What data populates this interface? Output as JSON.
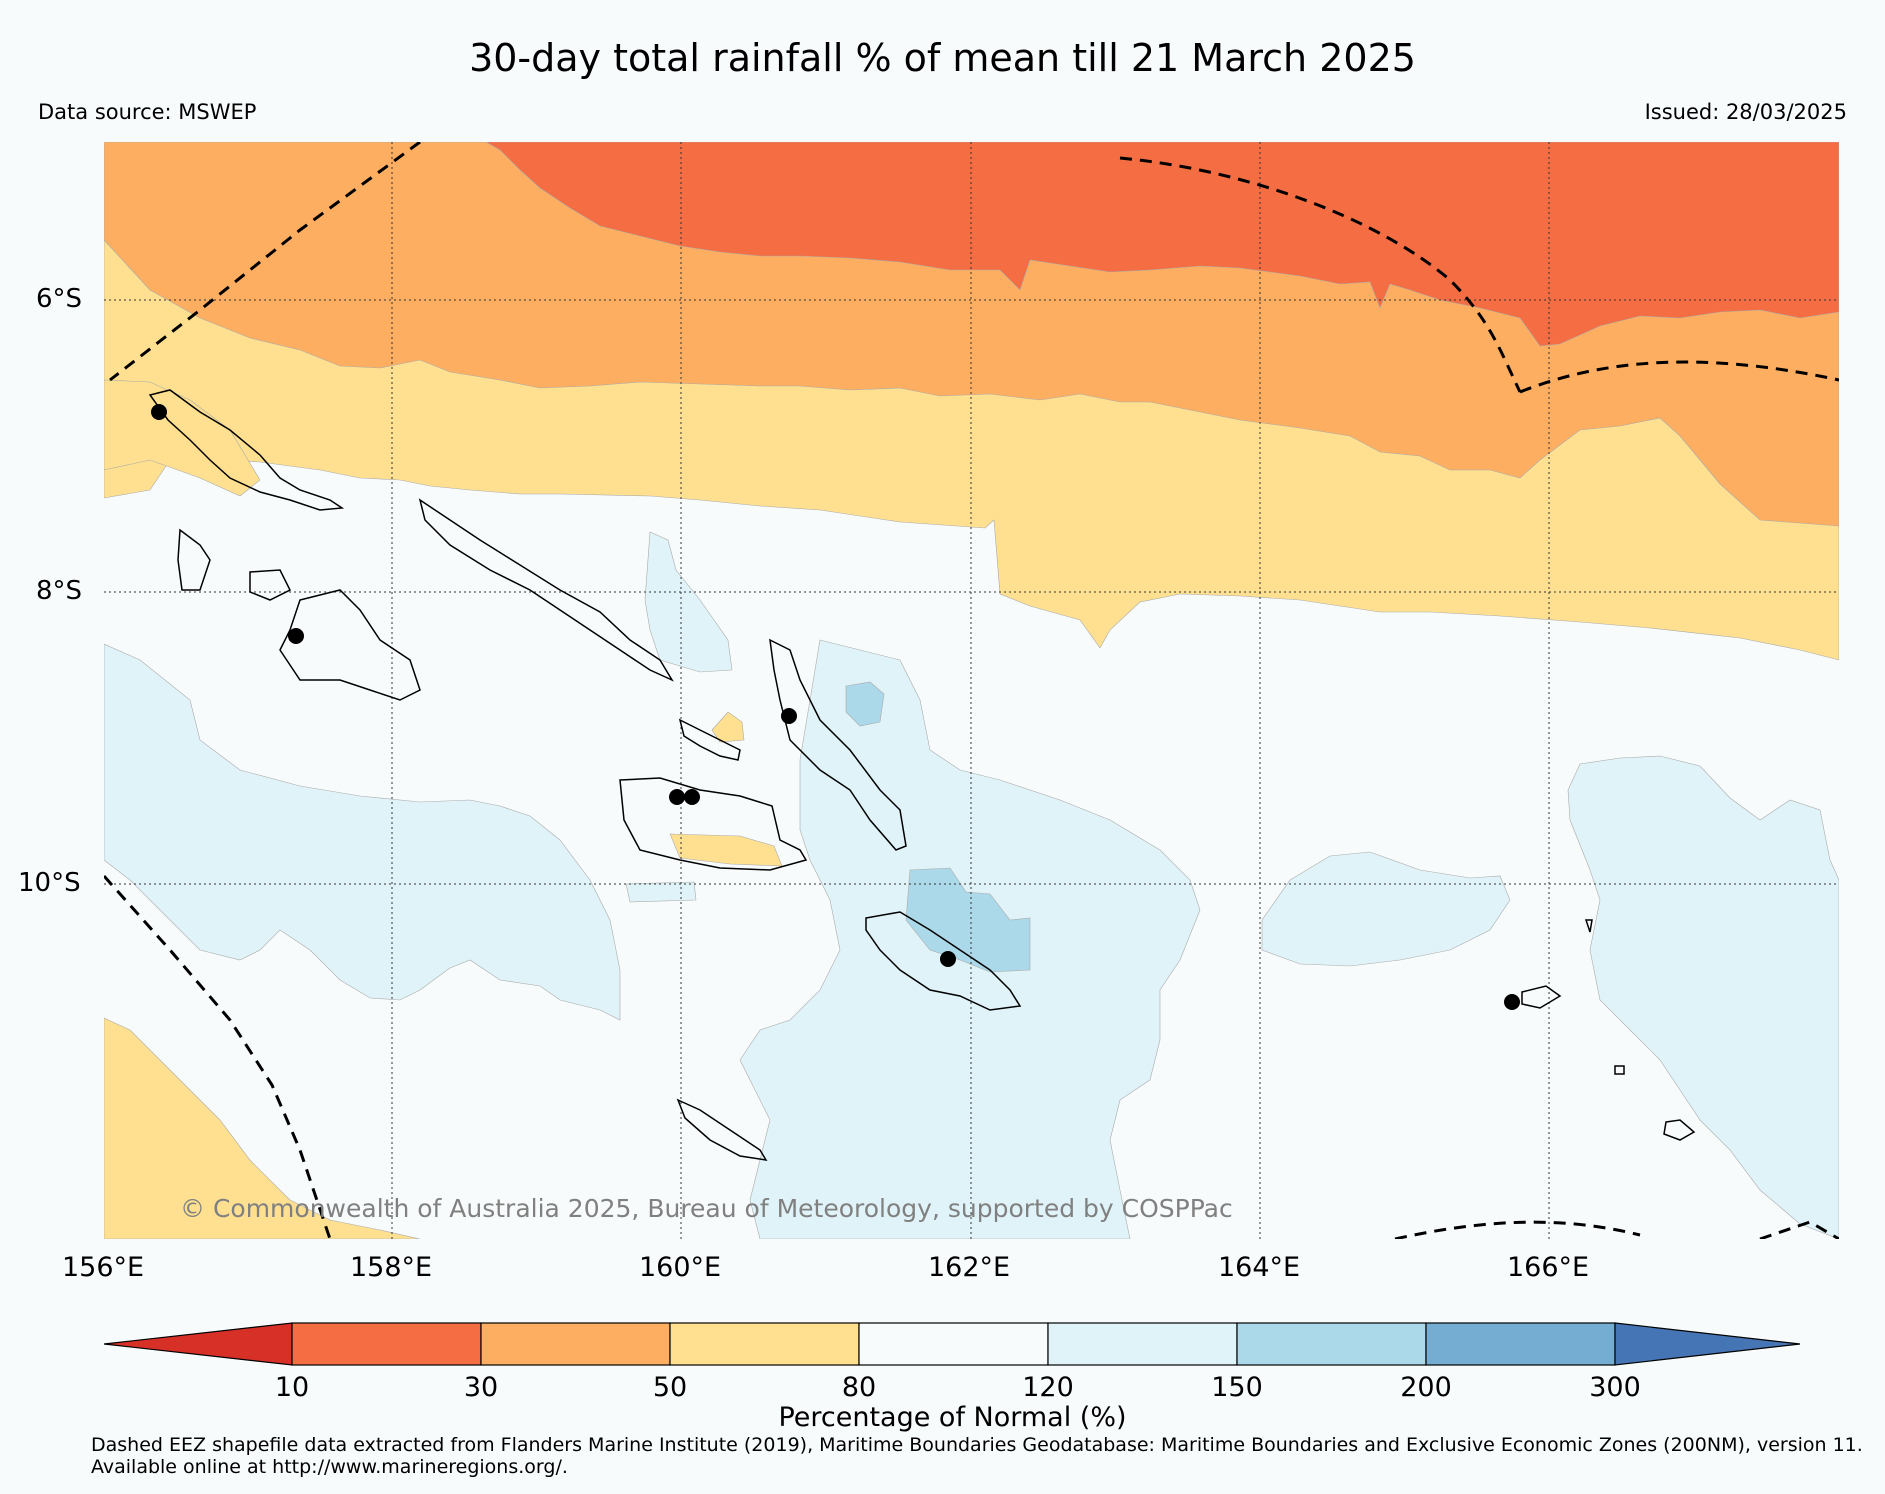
{
  "title": "30-day total rainfall % of mean till 21 March 2025",
  "data_source": "Data source: MSWEP",
  "issued": "Issued: 28/03/2025",
  "credit": "© Commonwealth of Australia 2025, Bureau of Meteorology, supported by COSPPac",
  "lat_labels": [
    "6°S",
    "8°S",
    "10°S"
  ],
  "lon_labels": [
    "156°E",
    "158°E",
    "160°E",
    "162°E",
    "164°E",
    "166°E"
  ],
  "colorbar": {
    "title": "Percentage of Normal (%)",
    "ticks": [
      "10",
      "30",
      "50",
      "80",
      "120",
      "150",
      "200",
      "300"
    ],
    "colors": [
      "#d73027",
      "#f46d43",
      "#fdae61",
      "#fee090",
      "#f8fbfc",
      "#e0f3f8",
      "#abd9e9",
      "#74add1",
      "#4575b4"
    ]
  },
  "footnote_lines": [
    "Dashed EEZ shapefile data extracted from Flanders Marine Institute (2019), Maritime Boundaries Geodatabase: Maritime Boundaries and Exclusive Economic Zones (200NM), version 11.",
    "Available online at http://www.marineregions.org/."
  ]
}
